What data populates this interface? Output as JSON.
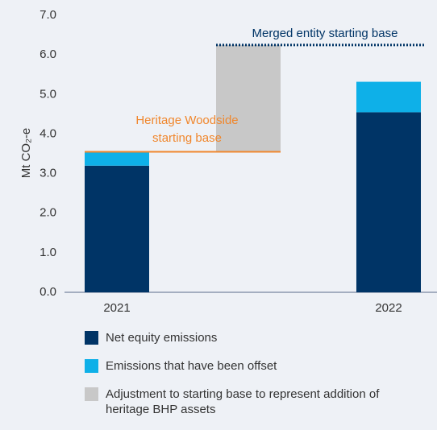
{
  "chart_data": {
    "type": "stacked-bar",
    "y_label": "Mt CO₂-e",
    "categories": [
      "2021",
      null,
      "2022"
    ],
    "series": [
      {
        "name": "Net equity emissions",
        "color": "#003466",
        "values": [
          3.2,
          null,
          4.55
        ]
      },
      {
        "name": "Emissions that have been offset",
        "color": "#0eb0e8",
        "values": [
          0.35,
          null,
          0.77
        ]
      },
      {
        "name": "Adjustment to starting base to represent addition of heritage BHP assets",
        "color": "#c8c8c8",
        "values": [
          null,
          2.7,
          null
        ]
      }
    ],
    "annotations": [
      {
        "text": [
          "Heritage Woodside",
          "starting base"
        ],
        "value": 3.55,
        "color": "#f0872d"
      },
      {
        "text": [
          "Merged entity starting base"
        ],
        "value": 6.25,
        "color": "#003466"
      }
    ],
    "ylim": [
      0,
      7
    ],
    "yticks": [
      {
        "value": 0,
        "label": "0.0"
      },
      {
        "value": 1,
        "label": "1.0"
      },
      {
        "value": 2,
        "label": "2.0"
      },
      {
        "value": 3,
        "label": "3.0"
      },
      {
        "value": 4,
        "label": "4.0"
      },
      {
        "value": 5,
        "label": "5.0"
      },
      {
        "value": 6,
        "label": "6.0"
      },
      {
        "value": 7,
        "label": "7.0"
      }
    ]
  }
}
